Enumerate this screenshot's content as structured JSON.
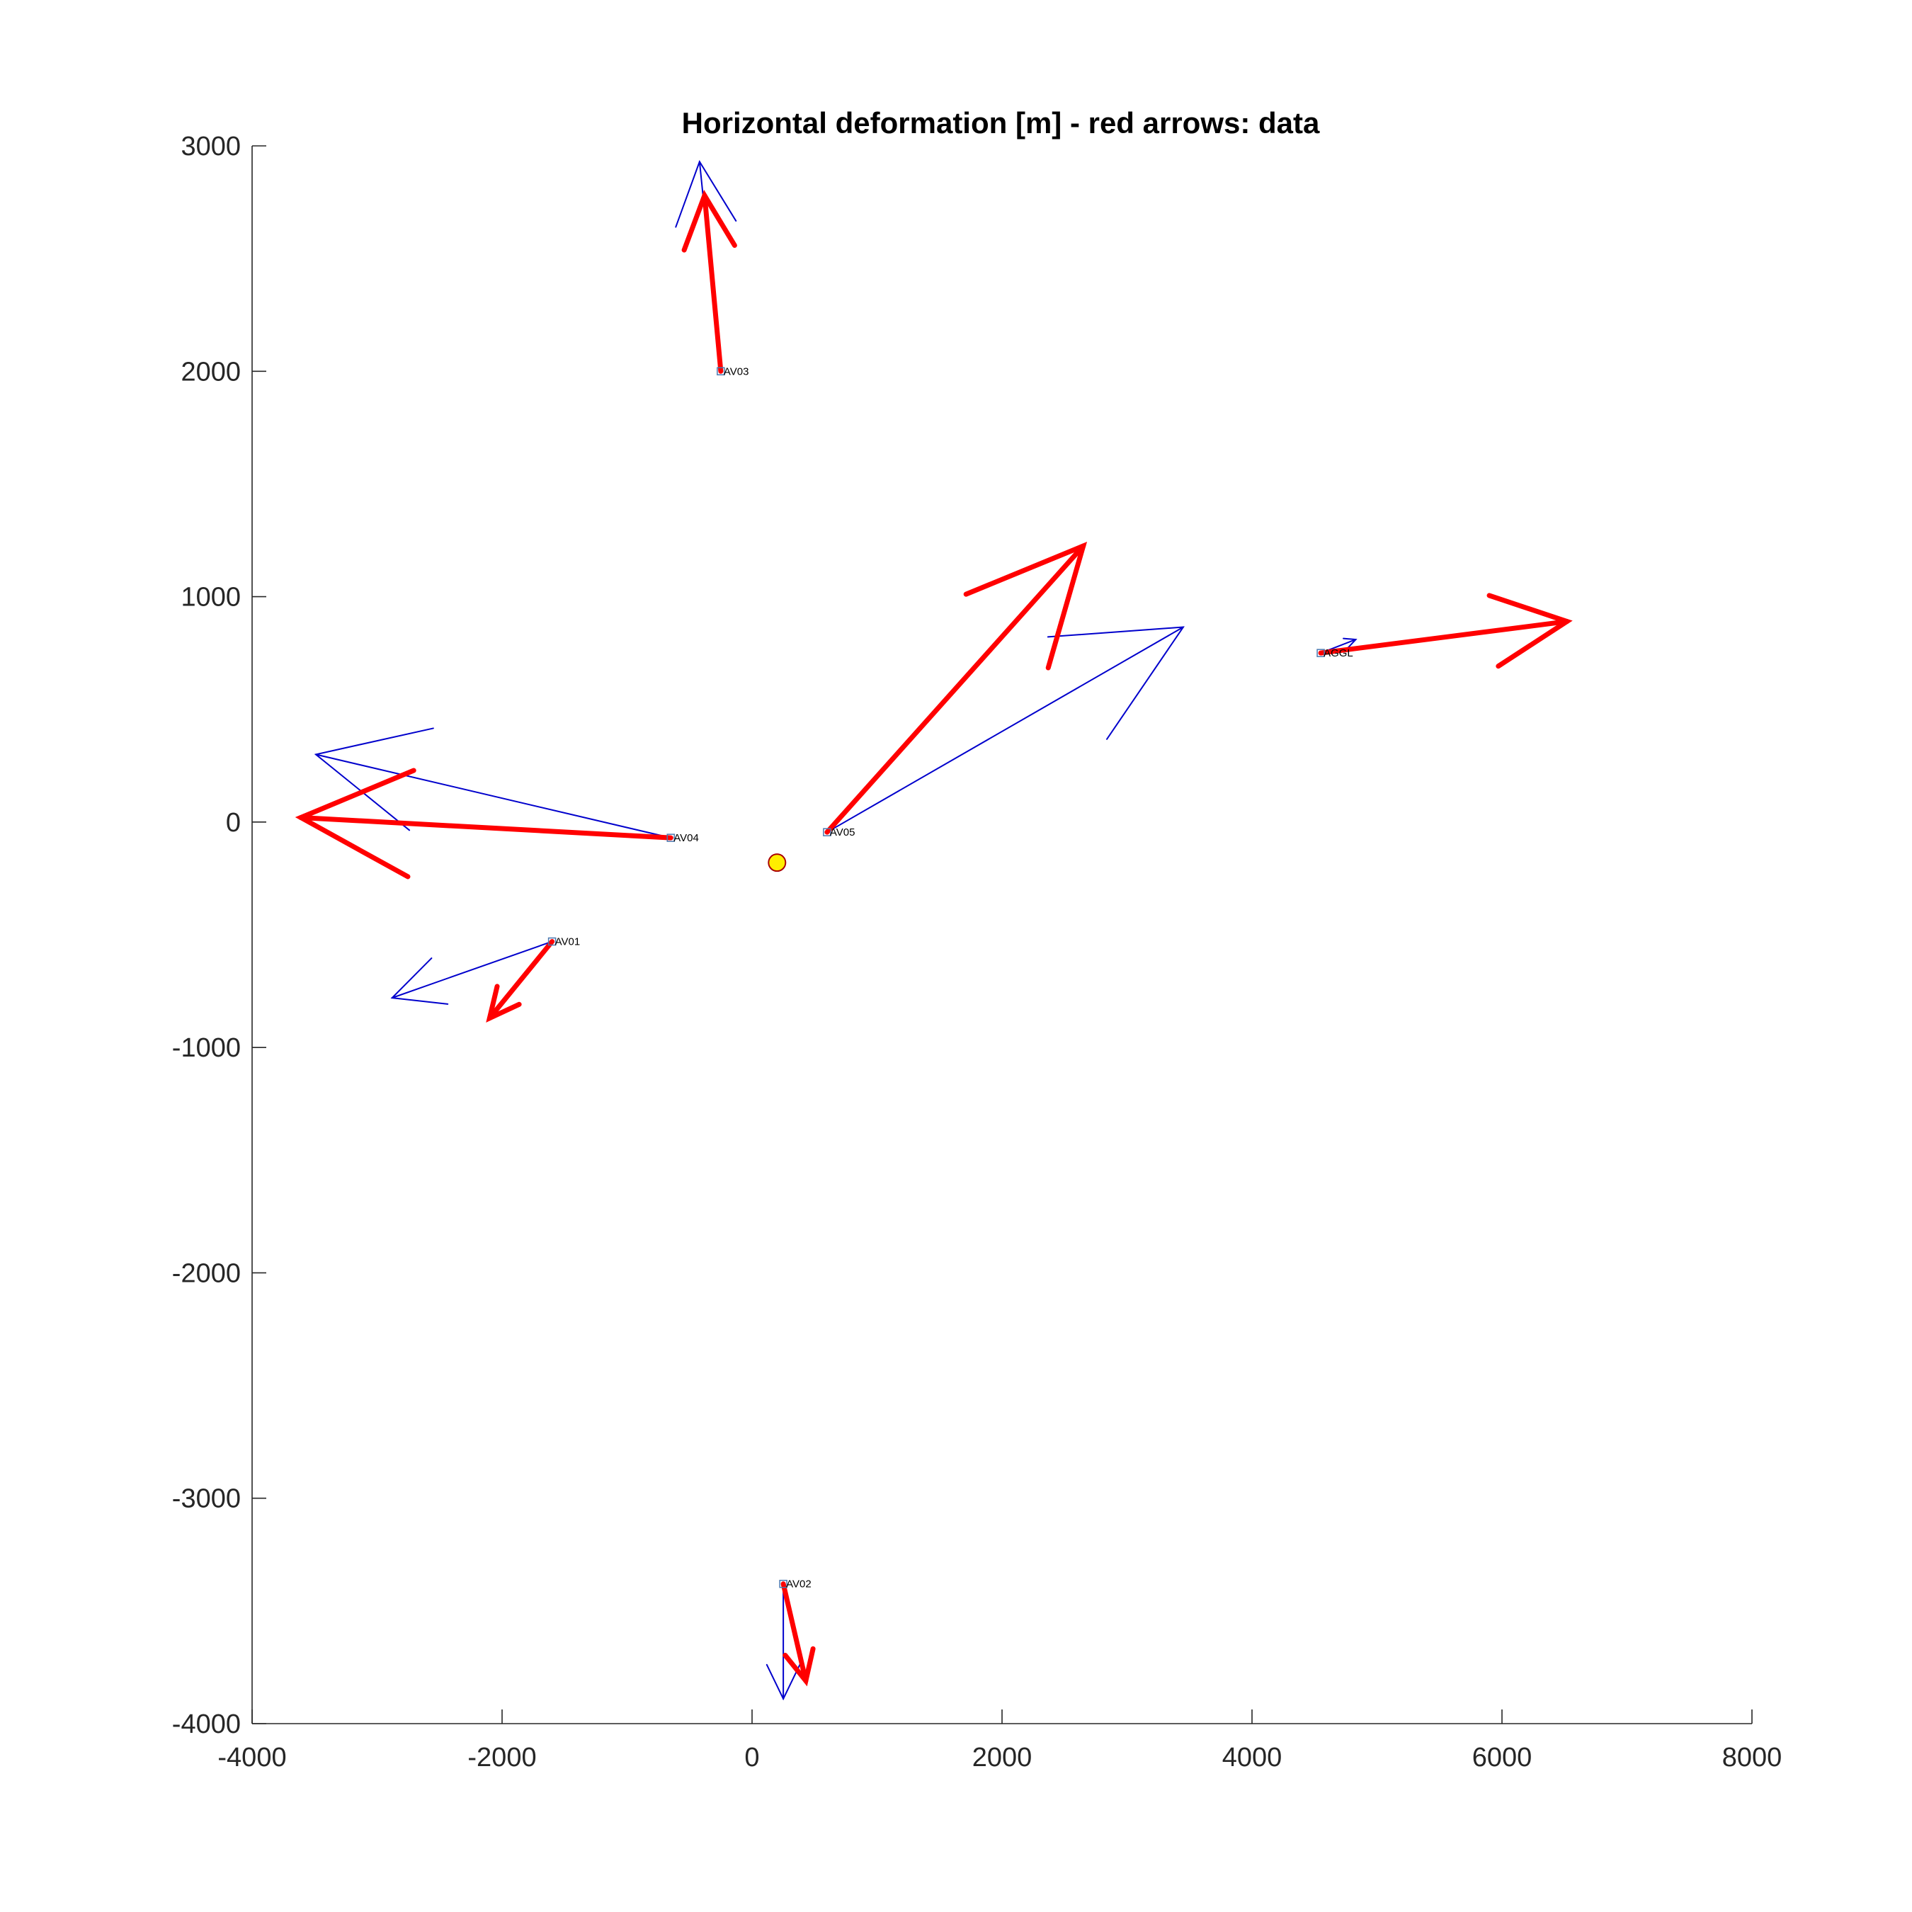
{
  "chart_data": {
    "type": "quiver",
    "title": "Horizontal deformation [m] - red arrows: data",
    "xlim": [
      -4000,
      8000
    ],
    "ylim": [
      -4000,
      3000
    ],
    "xticks": [
      -4000,
      -2000,
      0,
      2000,
      4000,
      6000,
      8000
    ],
    "yticks": [
      -4000,
      -3000,
      -2000,
      -1000,
      0,
      1000,
      2000,
      3000
    ],
    "xtick_labels": [
      "-4000",
      "-2000",
      "0",
      "2000",
      "4000",
      "6000",
      "8000"
    ],
    "ytick_labels": [
      "-4000",
      "-3000",
      "-2000",
      "-1000",
      "0",
      "1000",
      "2000",
      "3000"
    ],
    "grid": false,
    "colors": {
      "data": "#ff0000",
      "model": "#0000cc",
      "source": "#ffee00",
      "station_marker": "#4a78b0"
    },
    "stations": [
      {
        "name": "AV03",
        "x": -250,
        "y": 2000
      },
      {
        "name": "AV04",
        "x": -650,
        "y": -70
      },
      {
        "name": "AV05",
        "x": 600,
        "y": -45
      },
      {
        "name": "AV01",
        "x": -1600,
        "y": -530
      },
      {
        "name": "AV02",
        "x": 250,
        "y": -3380
      },
      {
        "name": "AGGL",
        "x": 4550,
        "y": 750
      }
    ],
    "series": [
      {
        "name": "data",
        "arrows": [
          {
            "x": -250,
            "y": 2000,
            "u": -130,
            "v": 780
          },
          {
            "x": -650,
            "y": -70,
            "u": -2960,
            "v": 90
          },
          {
            "x": 600,
            "y": -45,
            "u": 2050,
            "v": 1270
          },
          {
            "x": -1600,
            "y": -530,
            "u": -500,
            "v": -340
          },
          {
            "x": 250,
            "y": -3380,
            "u": 180,
            "v": -430
          },
          {
            "x": 4550,
            "y": 750,
            "u": 1970,
            "v": 140
          }
        ]
      },
      {
        "name": "model",
        "arrows": [
          {
            "x": -250,
            "y": 2000,
            "u": -170,
            "v": 930
          },
          {
            "x": -650,
            "y": -70,
            "u": -2840,
            "v": 370
          },
          {
            "x": 600,
            "y": -45,
            "u": 2850,
            "v": 910
          },
          {
            "x": -1600,
            "y": -530,
            "u": -1280,
            "v": -250
          },
          {
            "x": 250,
            "y": -3380,
            "u": 0,
            "v": -510
          },
          {
            "x": 4550,
            "y": 750,
            "u": 280,
            "v": 60
          }
        ]
      }
    ],
    "source": {
      "x": 200,
      "y": -180
    }
  }
}
